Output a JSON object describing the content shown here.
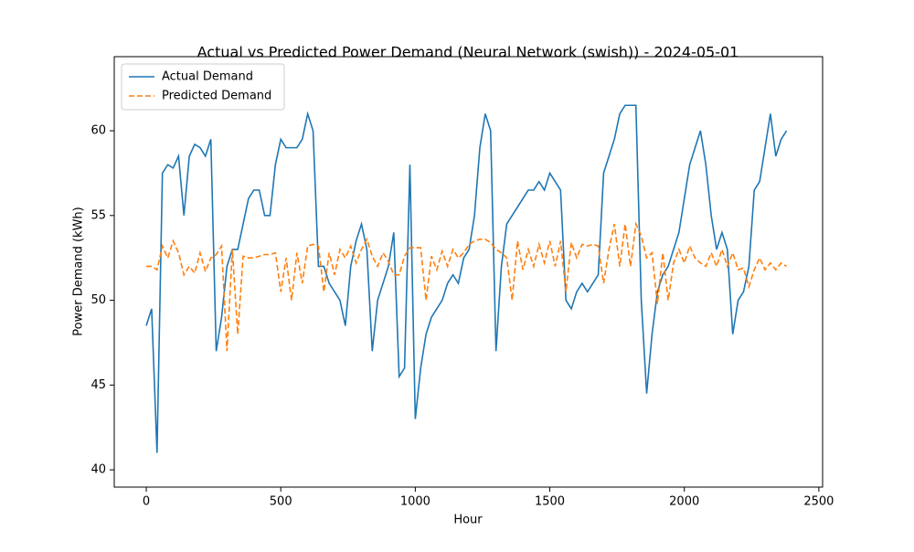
{
  "chart_data": {
    "type": "line",
    "title": "Actual vs Predicted Power Demand (Neural Network (swish)) - 2024-05-01",
    "xlabel": "Hour",
    "ylabel": "Power Demand (kWh)",
    "x": [
      0,
      20,
      40,
      60,
      80,
      100,
      120,
      140,
      160,
      180,
      200,
      220,
      240,
      260,
      280,
      300,
      320,
      340,
      360,
      380,
      400,
      420,
      440,
      460,
      480,
      500,
      520,
      540,
      560,
      580,
      600,
      620,
      640,
      660,
      680,
      700,
      720,
      740,
      760,
      780,
      800,
      820,
      840,
      860,
      880,
      900,
      920,
      940,
      960,
      980,
      1000,
      1020,
      1040,
      1060,
      1080,
      1100,
      1120,
      1140,
      1160,
      1180,
      1200,
      1220,
      1240,
      1260,
      1280,
      1300,
      1320,
      1340,
      1360,
      1380,
      1400,
      1420,
      1440,
      1460,
      1480,
      1500,
      1520,
      1540,
      1560,
      1580,
      1600,
      1620,
      1640,
      1660,
      1680,
      1700,
      1720,
      1740,
      1760,
      1780,
      1800,
      1820,
      1840,
      1860,
      1880,
      1900,
      1920,
      1940,
      1960,
      1980,
      2000,
      2020,
      2040,
      2060,
      2080,
      2100,
      2120,
      2140,
      2160,
      2180,
      2200,
      2220,
      2240,
      2260,
      2280,
      2300,
      2320,
      2340,
      2360,
      2380
    ],
    "series": [
      {
        "name": "Actual Demand",
        "color": "#1f77b4",
        "style": "solid",
        "values": [
          48.5,
          49.5,
          41,
          57.5,
          58,
          57.8,
          58.5,
          55,
          58.5,
          59.2,
          59,
          58.5,
          59.5,
          47,
          49,
          52,
          53,
          53,
          54.5,
          56,
          56.5,
          56.5,
          55,
          55,
          58,
          59.5,
          59,
          59,
          59,
          59.5,
          61,
          60,
          52,
          52,
          51,
          50.5,
          50,
          48.5,
          52,
          53.5,
          54.5,
          53,
          47,
          50,
          51,
          52,
          54,
          45.5,
          46,
          58,
          43,
          46,
          48,
          49,
          49.5,
          50,
          51,
          51.5,
          51,
          52.5,
          53,
          55,
          59,
          61,
          60,
          47,
          52,
          54.5,
          55,
          55.5,
          56,
          56.5,
          56.5,
          57,
          56.5,
          57.5,
          57,
          56.5,
          50,
          49.5,
          50.5,
          51,
          50.5,
          51,
          51.5,
          57.5,
          58.5,
          59.5,
          61,
          61.5,
          61.5,
          61.5,
          50,
          44.5,
          48,
          50.5,
          51.5,
          52,
          53,
          54,
          56,
          58,
          59,
          60,
          58,
          55,
          53,
          54,
          53,
          48,
          50,
          50.5,
          52,
          56.5,
          57,
          59,
          61,
          58.5,
          59.5,
          60
        ]
      },
      {
        "name": "Predicted Demand",
        "color": "#ff7f0e",
        "style": "dashed",
        "values": [
          52,
          52,
          51.8,
          53.2,
          52.5,
          53.5,
          52.8,
          51.5,
          52,
          51.6,
          52.8,
          51.7,
          52.5,
          52.7,
          53.2,
          47,
          53,
          48,
          52.6,
          52.5,
          52.5,
          52.6,
          52.7,
          52.7,
          52.8,
          50.5,
          52.5,
          50,
          52.8,
          51,
          53.2,
          53.3,
          53.2,
          50.5,
          52.8,
          51.5,
          53,
          52.5,
          53.2,
          52.2,
          53,
          53.6,
          52.6,
          52,
          52.8,
          52.3,
          51.5,
          51.5,
          52.6,
          53.1,
          53.1,
          53.1,
          50,
          52.6,
          51.8,
          52.9,
          52,
          53,
          52.5,
          52.8,
          53.3,
          53.5,
          53.6,
          53.6,
          53.4,
          53,
          52.8,
          52.5,
          50,
          53.5,
          51.8,
          53,
          52,
          53.3,
          52.2,
          53.5,
          52,
          53.5,
          50.5,
          53.4,
          52.5,
          53.3,
          53.2,
          53.3,
          53.2,
          51,
          53,
          54.5,
          52,
          54.5,
          52,
          54.5,
          53.8,
          52.5,
          52.8,
          49.8,
          52.8,
          50,
          52.2,
          53,
          52.2,
          53.2,
          52.5,
          52.2,
          52,
          52.8,
          52,
          53,
          52,
          52.8,
          51.8,
          51.9,
          50.8,
          51.8,
          52.5,
          51.8,
          52.2,
          51.8,
          52.2,
          52
        ]
      }
    ],
    "xlim": [
      -119,
      2514
    ],
    "ylim": [
      38.98,
      64.37
    ],
    "xticks": [
      0,
      500,
      1000,
      1500,
      2000,
      2500
    ],
    "yticks": [
      40,
      45,
      50,
      55,
      60
    ],
    "grid": false,
    "legend": "upper left"
  }
}
